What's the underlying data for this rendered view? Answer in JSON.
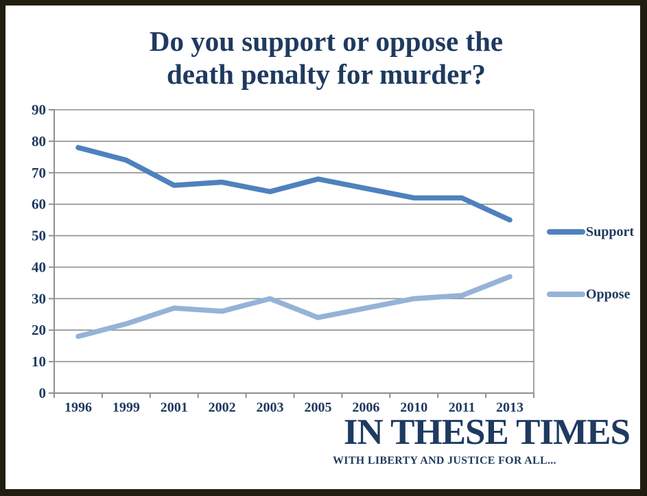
{
  "frame": {
    "background": "#ffffff",
    "border_color": "#211d11"
  },
  "title": {
    "line1": "Do you support or oppose the",
    "line2": "death penalty for murder?",
    "color": "#1f3a5f"
  },
  "chart_data": {
    "type": "line",
    "title": "Do you support or oppose the death penalty for murder?",
    "xlabel": "",
    "ylabel": "",
    "categories": [
      "1996",
      "1999",
      "2001",
      "2002",
      "2003",
      "2005",
      "2006",
      "2010",
      "2011",
      "2013"
    ],
    "series": [
      {
        "name": "Support",
        "color": "#4f81bd",
        "values": [
          78,
          74,
          66,
          67,
          64,
          68,
          65,
          62,
          62,
          55
        ]
      },
      {
        "name": "Oppose",
        "color": "#95b3d7",
        "values": [
          18,
          22,
          27,
          26,
          30,
          24,
          27,
          30,
          31,
          37
        ]
      }
    ],
    "ylim": [
      0,
      90
    ],
    "yticks": [
      0,
      10,
      20,
      30,
      40,
      50,
      60,
      70,
      80,
      90
    ],
    "grid": true,
    "gridline_color": "#8f8f8f",
    "axis_text_color": "#1f3a5f",
    "legend_position": "right"
  },
  "legend": {
    "items": [
      {
        "label": "Support",
        "color": "#4f81bd"
      },
      {
        "label": "Oppose",
        "color": "#95b3d7"
      }
    ]
  },
  "branding": {
    "masthead": "IN THESE TIMES",
    "tagline": "WITH LIBERTY AND JUSTICE FOR ALL..."
  }
}
